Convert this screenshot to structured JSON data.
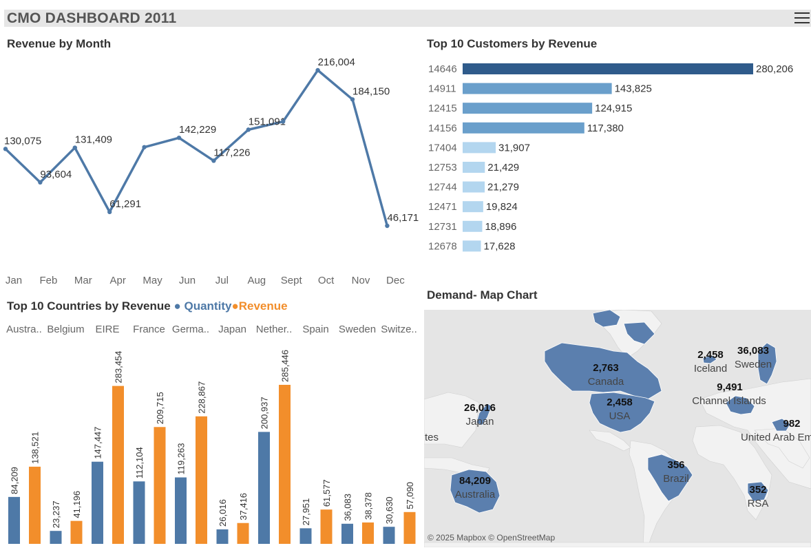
{
  "header": {
    "title": "CMO DASHBOARD 2011"
  },
  "revenue_by_month": {
    "title": "Revenue by Month",
    "color": "#4e79a7",
    "chart_data": {
      "type": "line",
      "categories": [
        "Jan",
        "Feb",
        "Mar",
        "Apr",
        "May",
        "Jun",
        "Jul",
        "Aug",
        "Sept",
        "Oct",
        "Nov",
        "Dec"
      ],
      "values": [
        130075,
        93604,
        131409,
        61291,
        132000,
        142229,
        117226,
        151091,
        160000,
        216004,
        184150,
        46171
      ],
      "labels": [
        "130,075",
        "93,604",
        "131,409",
        "61,291",
        "",
        "142,229",
        "117,226",
        "151,091",
        "",
        "216,004",
        "184,150",
        "46,171"
      ],
      "title": "Revenue by Month"
    }
  },
  "top_customers": {
    "title": "Top 10 Customers by  Revenue",
    "colors": {
      "top": "#2f5b8b",
      "mid": "#6a9fcb",
      "low": "#b3d6ef"
    },
    "chart_data": {
      "type": "bar",
      "orientation": "horizontal",
      "categories": [
        "14646",
        "14911",
        "12415",
        "14156",
        "17404",
        "12753",
        "12744",
        "12471",
        "12731",
        "12678"
      ],
      "values": [
        280206,
        143825,
        124915,
        117380,
        31907,
        21429,
        21279,
        19824,
        18896,
        17628
      ],
      "labels": [
        "280,206",
        "143,825",
        "124,915",
        "117,380",
        "31,907",
        "21,429",
        "21,279",
        "19,824",
        "18,896",
        "17,628"
      ]
    }
  },
  "top_countries": {
    "title": "Top 10 Countries by Revenue",
    "legend": {
      "quantity": "Quantity",
      "revenue": "Revenue",
      "bullet": "●"
    },
    "colors": {
      "quantity": "#4e79a7",
      "revenue": "#f28e2b"
    },
    "chart_data": {
      "type": "bar",
      "categories": [
        "Austra..",
        "Belgium",
        "EIRE",
        "France",
        "Germa..",
        "Japan",
        "Nether..",
        "Spain",
        "Sweden",
        "Switze.."
      ],
      "series": [
        {
          "name": "Quantity",
          "values": [
            84209,
            23237,
            147447,
            112104,
            119263,
            26016,
            200937,
            27951,
            36083,
            30630
          ],
          "labels": [
            "84,209",
            "23,237",
            "147,447",
            "112,104",
            "119,263",
            "26,016",
            "200,937",
            "27,951",
            "36,083",
            "30,630"
          ]
        },
        {
          "name": "Revenue",
          "values": [
            138521,
            41196,
            283454,
            209715,
            228867,
            37416,
            285446,
            61577,
            38378,
            57090
          ],
          "labels": [
            "138,521",
            "41,196",
            "283,454",
            "209,715",
            "228,867",
            "37,416",
            "285,446",
            "61,577",
            "38,378",
            "57,090"
          ]
        }
      ]
    }
  },
  "demand_map": {
    "title": "Demand- Map Chart",
    "attribution": "© 2025 Mapbox © OpenStreetMap",
    "land_color": "#5b7fae",
    "markers": [
      {
        "value": "2,763",
        "name": "Canada"
      },
      {
        "value": "2,458",
        "name": "USA"
      },
      {
        "value": "26,016",
        "name": "Japan"
      },
      {
        "value": "84,209",
        "name": "Australia"
      },
      {
        "value": "356",
        "name": "Brazil"
      },
      {
        "value": "2,458",
        "name": "Iceland"
      },
      {
        "value": "36,083",
        "name": "Sweden"
      },
      {
        "value": "9,491",
        "name": "Channel Islands"
      },
      {
        "value": "982",
        "name": "United Arab Em"
      },
      {
        "value": "352",
        "name": "RSA"
      },
      {
        "value": "",
        "name": "tes"
      }
    ]
  }
}
